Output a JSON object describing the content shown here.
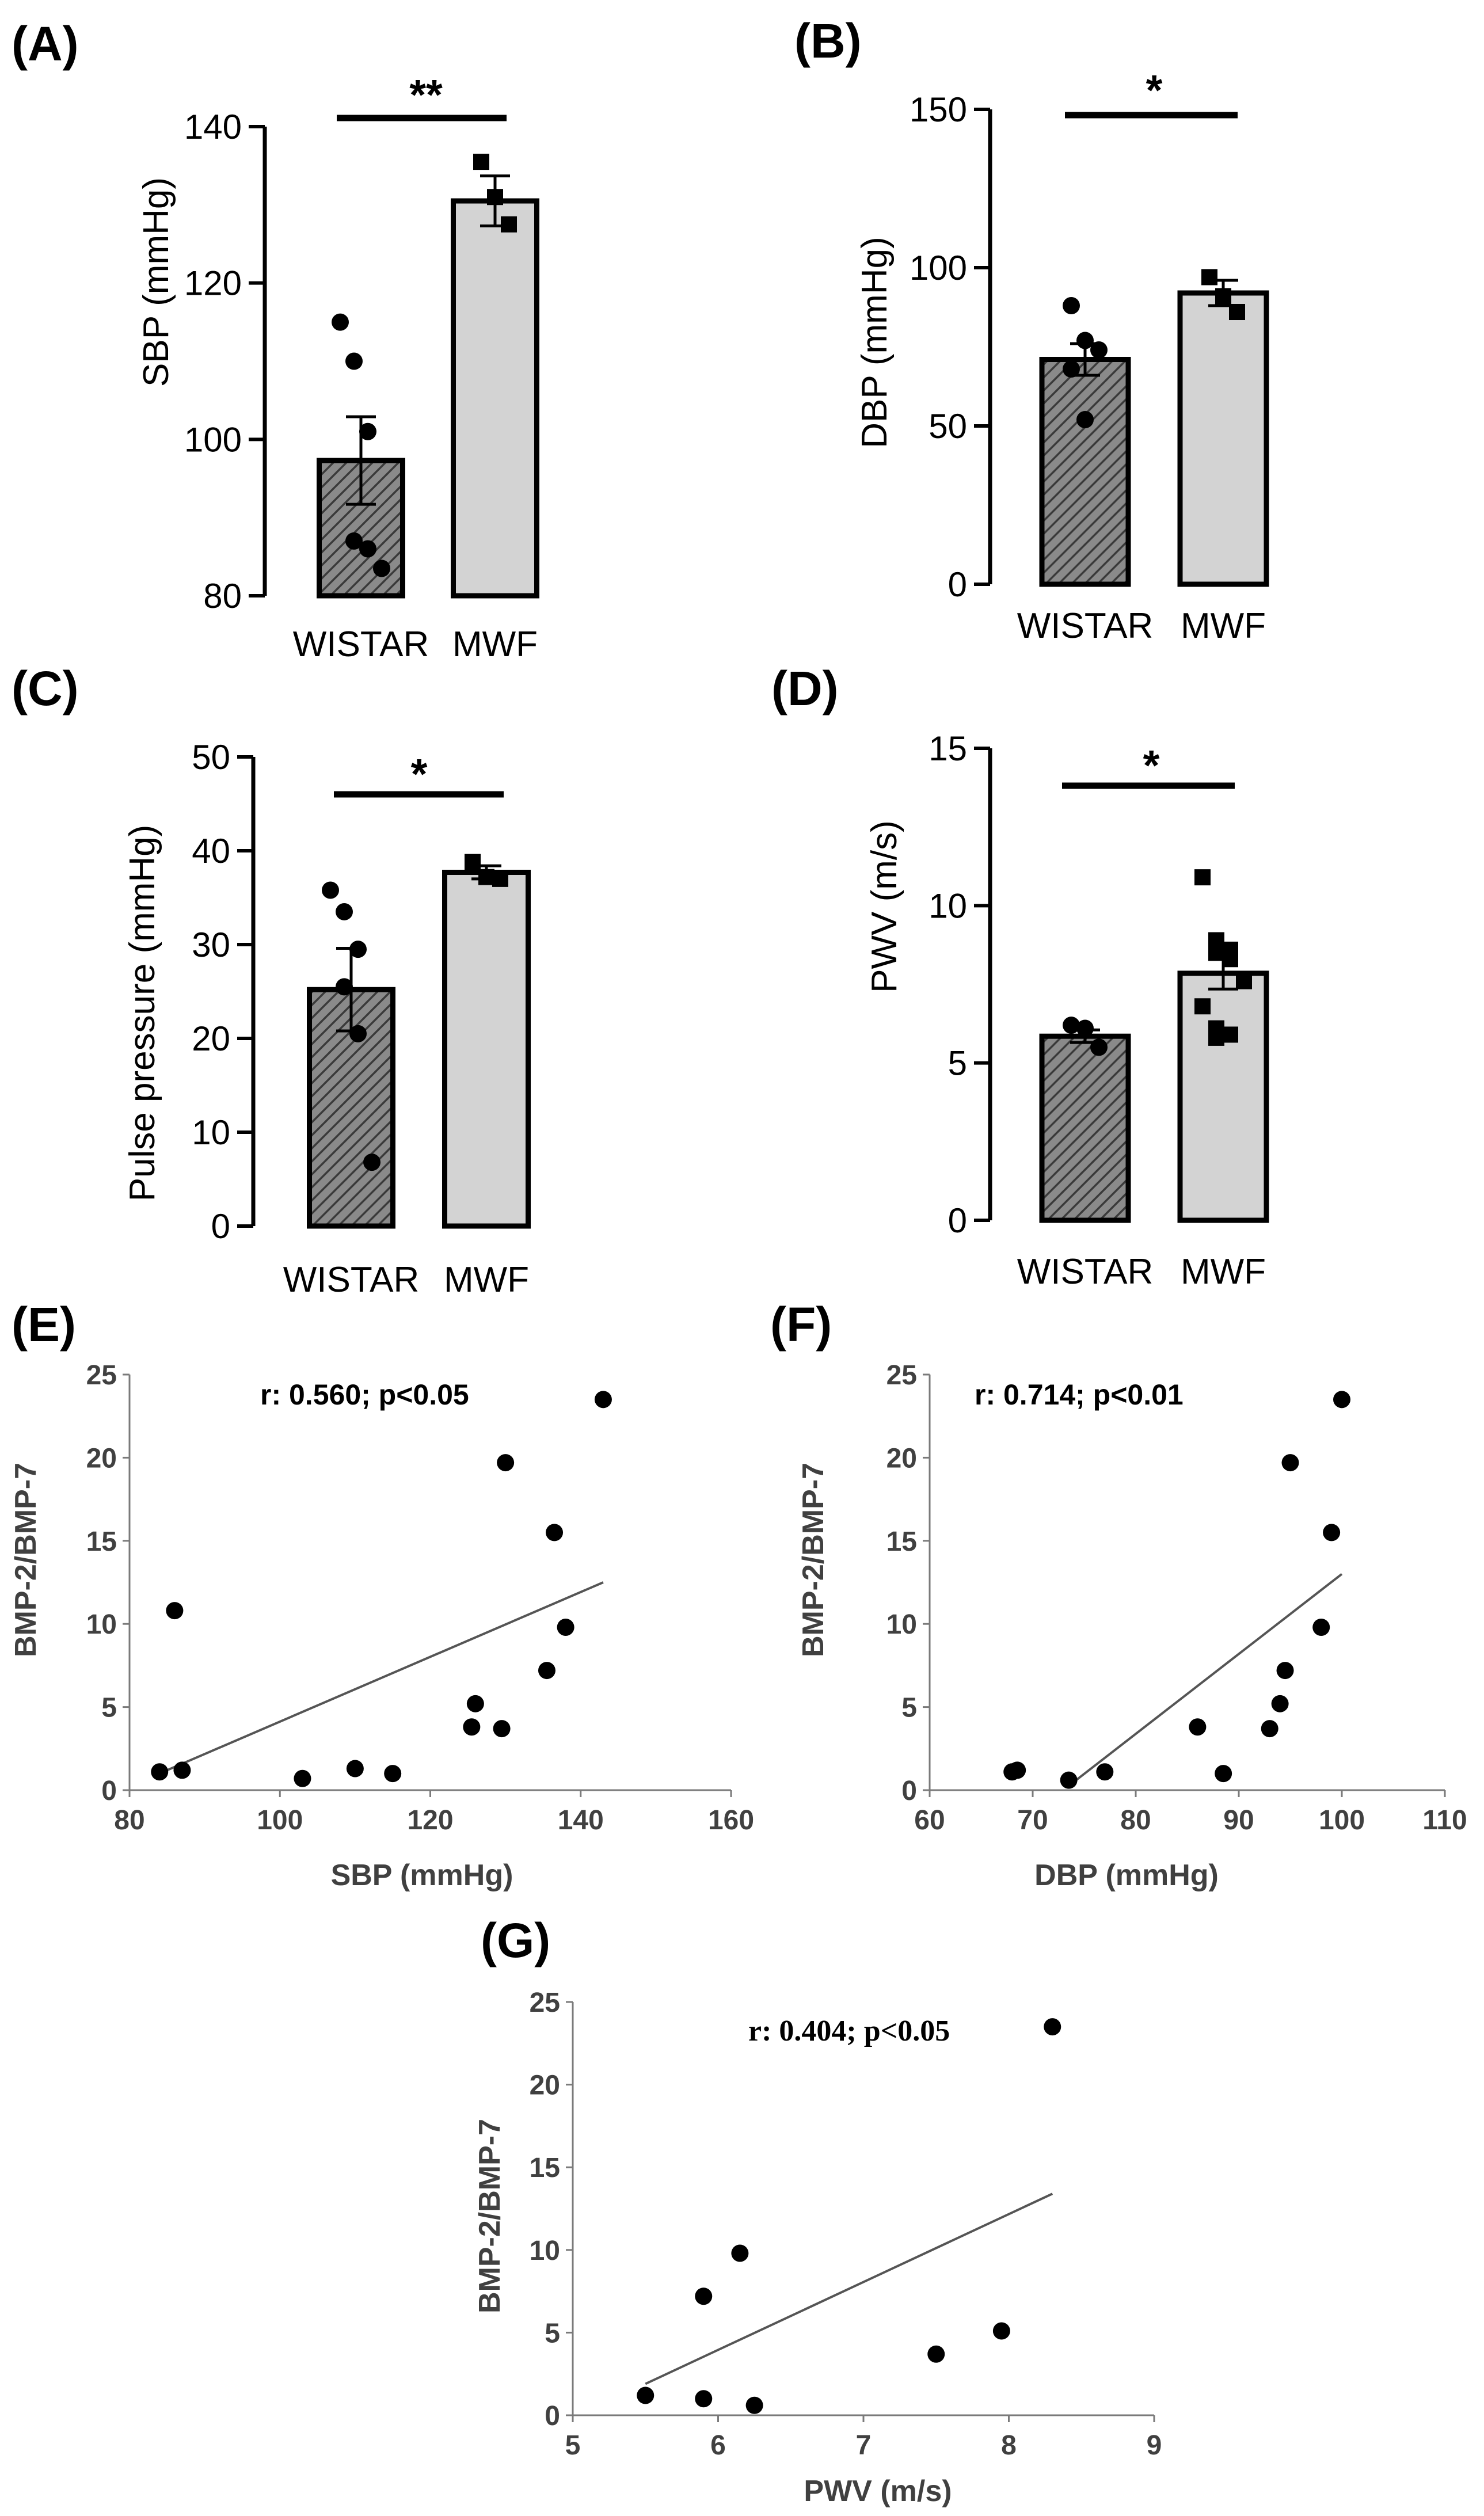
{
  "chart_data": [
    {
      "panel": "(A)",
      "type": "bar",
      "ylabel": "SBP (mmHg)",
      "ylim": [
        80,
        140
      ],
      "yticks": [
        80,
        100,
        120,
        140
      ],
      "categories": [
        "WISTAR",
        "MWF"
      ],
      "values": [
        97.3,
        130.5
      ],
      "sem": [
        5.6,
        3.2
      ],
      "fills": [
        "hatched",
        "#d3d3d3"
      ],
      "markers": [
        "circle",
        "square"
      ],
      "points": [
        [
          115,
          110,
          101,
          87,
          86,
          83.5
        ],
        [
          135.5,
          131,
          127.5
        ]
      ],
      "significance": "**"
    },
    {
      "panel": "(B)",
      "type": "bar",
      "ylabel": "DBP (mmHg)",
      "ylim": [
        0,
        150
      ],
      "yticks": [
        0,
        50,
        100,
        150
      ],
      "categories": [
        "WISTAR",
        "MWF"
      ],
      "values": [
        71,
        92
      ],
      "sem": [
        5,
        4
      ],
      "fills": [
        "hatched",
        "#d3d3d3"
      ],
      "markers": [
        "circle",
        "square"
      ],
      "points": [
        [
          88,
          77,
          74,
          68,
          52
        ],
        [
          97,
          91,
          86
        ]
      ],
      "significance": "*"
    },
    {
      "panel": "(C)",
      "type": "bar",
      "ylabel": "Pulse pressure (mmHg)",
      "ylim": [
        0,
        50
      ],
      "yticks": [
        0,
        10,
        20,
        30,
        40,
        50
      ],
      "categories": [
        "WISTAR",
        "MWF"
      ],
      "values": [
        25.2,
        37.7
      ],
      "sem": [
        4.4,
        0.7
      ],
      "fills": [
        "hatched",
        "#d3d3d3"
      ],
      "markers": [
        "circle",
        "square"
      ],
      "points": [
        [
          35.8,
          33.5,
          29.5,
          25.5,
          20.5,
          6.8
        ],
        [
          38.8,
          37.2,
          37
        ]
      ],
      "significance": "*"
    },
    {
      "panel": "(D)",
      "type": "bar",
      "ylabel": "PWV (m/s)",
      "ylim": [
        0,
        15
      ],
      "yticks": [
        0,
        5,
        10,
        15
      ],
      "categories": [
        "WISTAR",
        "MWF"
      ],
      "values": [
        5.85,
        7.85
      ],
      "sem": [
        0.2,
        0.5
      ],
      "fills": [
        "hatched",
        "#d3d3d3"
      ],
      "markers": [
        "circle",
        "square"
      ],
      "points": [
        [
          6.2,
          6.1,
          5.5
        ],
        [
          10.9,
          8.9,
          8.6,
          8.5,
          8.3,
          7.6,
          6.8,
          6.1,
          5.9,
          5.8
        ]
      ],
      "significance": "*"
    },
    {
      "panel": "(E)",
      "type": "scatter",
      "xlabel": "SBP (mmHg)",
      "ylabel": "BMP-2/BMP-7",
      "xlim": [
        80,
        160
      ],
      "ylim": [
        0,
        25
      ],
      "xticks": [
        80,
        100,
        120,
        140,
        160
      ],
      "yticks": [
        0,
        5,
        10,
        15,
        20,
        25
      ],
      "annotation": "r: 0.560; p<0.05",
      "x": [
        84,
        86,
        87,
        103,
        110,
        115,
        125.5,
        126,
        129.5,
        130,
        135.5,
        136.5,
        138,
        143
      ],
      "y": [
        1.1,
        10.8,
        1.2,
        0.7,
        1.3,
        1.0,
        3.8,
        5.2,
        3.7,
        19.7,
        7.2,
        15.5,
        9.8,
        23.5
      ],
      "fit_line": {
        "x": [
          85,
          143
        ],
        "y": [
          1.2,
          12.5
        ]
      }
    },
    {
      "panel": "(F)",
      "type": "scatter",
      "xlabel": "DBP (mmHg)",
      "ylabel": "BMP-2/BMP-7",
      "xlim": [
        60,
        110
      ],
      "ylim": [
        0,
        25
      ],
      "xticks": [
        60,
        70,
        80,
        90,
        100,
        110
      ],
      "yticks": [
        0,
        5,
        10,
        15,
        20,
        25
      ],
      "annotation": "r: 0.714; p<0.01",
      "x": [
        68,
        68.5,
        73.5,
        77,
        86,
        88.5,
        93,
        94,
        94.5,
        95,
        98,
        99,
        100
      ],
      "y": [
        1.1,
        1.2,
        0.6,
        1.1,
        3.8,
        1.0,
        3.7,
        5.2,
        7.2,
        19.7,
        9.8,
        15.5,
        23.5
      ],
      "fit_line": {
        "x": [
          74,
          100
        ],
        "y": [
          0.5,
          13.0
        ]
      }
    },
    {
      "panel": "(G)",
      "type": "scatter",
      "xlabel": "PWV (m/s)",
      "ylabel": "BMP-2/BMP-7",
      "xlim": [
        5,
        9
      ],
      "ylim": [
        0,
        25
      ],
      "xticks": [
        5,
        6,
        7,
        8,
        9
      ],
      "yticks": [
        0,
        5,
        10,
        15,
        20,
        25
      ],
      "annotation": "r: 0.404; p<0.05",
      "x": [
        5.5,
        5.9,
        5.9,
        6.15,
        6.25,
        7.5,
        7.95,
        8.3
      ],
      "y": [
        1.2,
        7.2,
        1.0,
        9.8,
        0.6,
        3.7,
        5.1,
        23.5
      ],
      "fit_line": {
        "x": [
          5.5,
          8.3
        ],
        "y": [
          1.9,
          13.4
        ]
      }
    }
  ]
}
